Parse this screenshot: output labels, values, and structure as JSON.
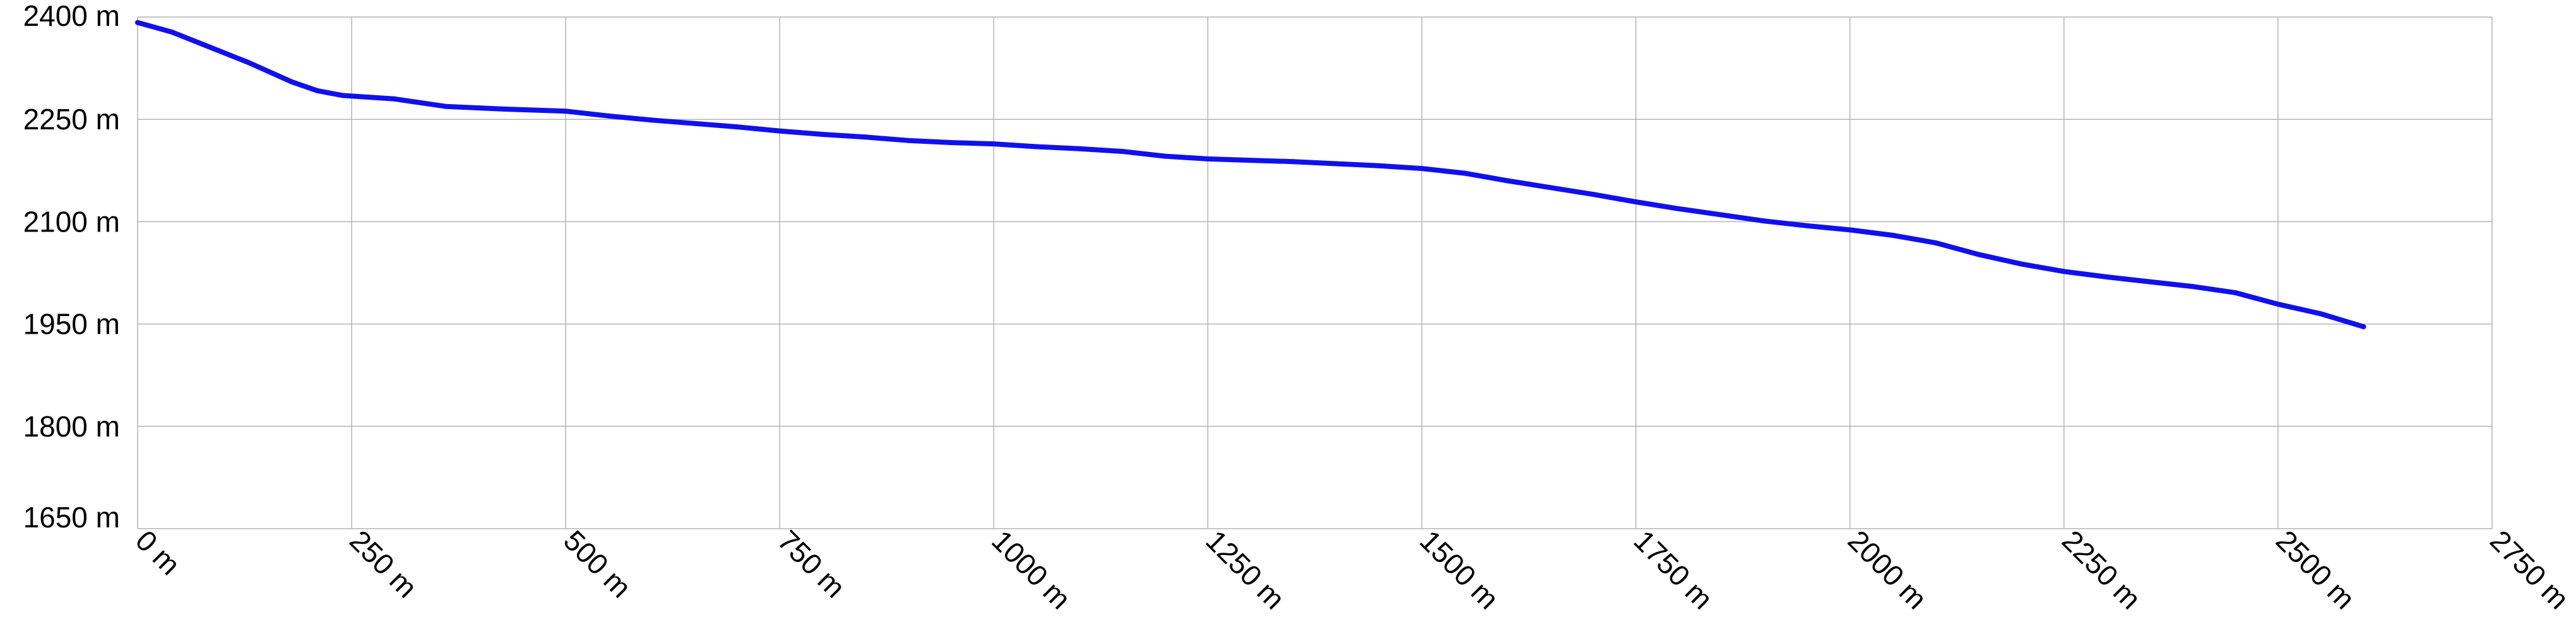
{
  "chart_data": {
    "type": "line",
    "title": "",
    "xlabel": "",
    "ylabel": "",
    "xlim": [
      0,
      2750
    ],
    "ylim": [
      1650,
      2400
    ],
    "grid": true,
    "x_ticks": [
      {
        "value": 0,
        "label": "0 m"
      },
      {
        "value": 250,
        "label": "250 m"
      },
      {
        "value": 500,
        "label": "500 m"
      },
      {
        "value": 750,
        "label": "750 m"
      },
      {
        "value": 1000,
        "label": "1000 m"
      },
      {
        "value": 1250,
        "label": "1250 m"
      },
      {
        "value": 1500,
        "label": "1500 m"
      },
      {
        "value": 1750,
        "label": "1750 m"
      },
      {
        "value": 2000,
        "label": "2000 m"
      },
      {
        "value": 2250,
        "label": "2250 m"
      },
      {
        "value": 2500,
        "label": "2500 m"
      },
      {
        "value": 2750,
        "label": "2750 m"
      }
    ],
    "y_ticks": [
      {
        "value": 2400,
        "label": "2400 m"
      },
      {
        "value": 2250,
        "label": "2250 m"
      },
      {
        "value": 2100,
        "label": "2100 m"
      },
      {
        "value": 1950,
        "label": "1950 m"
      },
      {
        "value": 1800,
        "label": "1800 m"
      },
      {
        "value": 1650,
        "label": "1650 m"
      }
    ],
    "series": [
      {
        "color": "#1010ee",
        "x": [
          0,
          40,
          80,
          130,
          180,
          210,
          240,
          300,
          360,
          430,
          500,
          550,
          600,
          650,
          700,
          750,
          800,
          850,
          900,
          950,
          1000,
          1050,
          1100,
          1150,
          1200,
          1250,
          1300,
          1350,
          1400,
          1450,
          1500,
          1550,
          1600,
          1650,
          1700,
          1750,
          1800,
          1850,
          1900,
          1950,
          2000,
          2050,
          2100,
          2150,
          2200,
          2250,
          2300,
          2350,
          2400,
          2450,
          2500,
          2550,
          2600
        ],
        "y": [
          2392,
          2378,
          2358,
          2333,
          2305,
          2292,
          2285,
          2280,
          2269,
          2265,
          2262,
          2255,
          2249,
          2244,
          2239,
          2233,
          2228,
          2224,
          2219,
          2216,
          2214,
          2210,
          2207,
          2203,
          2196,
          2192,
          2190,
          2188,
          2185,
          2182,
          2178,
          2171,
          2160,
          2150,
          2140,
          2129,
          2119,
          2110,
          2101,
          2094,
          2088,
          2080,
          2069,
          2052,
          2038,
          2027,
          2019,
          2012,
          2005,
          1996,
          1979,
          1965,
          1946
        ]
      }
    ]
  }
}
